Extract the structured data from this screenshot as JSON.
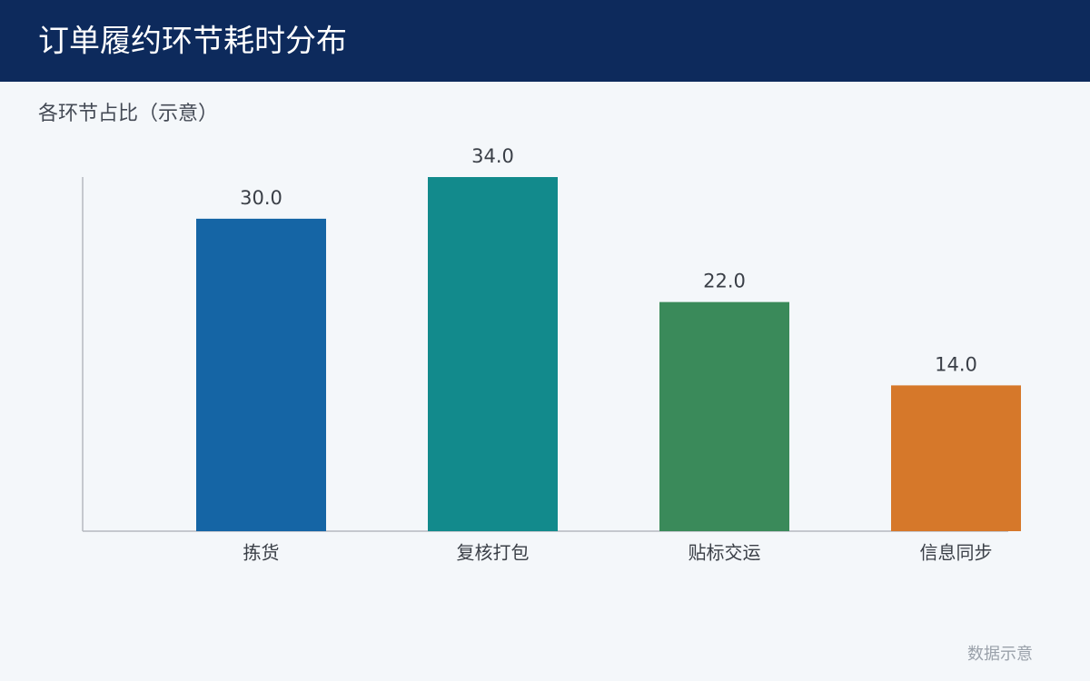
{
  "chart_data": {
    "type": "bar",
    "title": "订单履约环节耗时分布",
    "subtitle": "各环节占比（示意）",
    "categories": [
      "拣货",
      "复核打包",
      "贴标交运",
      "信息同步"
    ],
    "values": [
      30,
      34,
      22,
      14
    ],
    "value_labels": [
      "30.0",
      "34.0",
      "22.0",
      "14.0"
    ],
    "colors": [
      "#1565a5",
      "#128a8c",
      "#3a8a5a",
      "#d6782a"
    ],
    "footnote": "数据示意"
  }
}
